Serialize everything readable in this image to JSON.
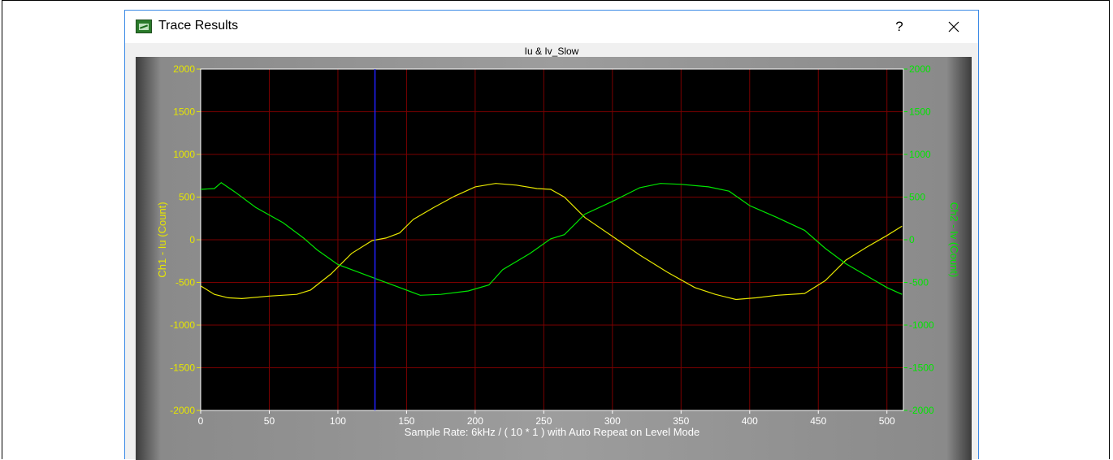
{
  "window": {
    "title": "Trace Results",
    "help_label": "?",
    "icons": {
      "app": "trace-results-app-icon",
      "close": "close-icon"
    }
  },
  "chart_data": {
    "type": "line",
    "title": "Iu & Iv_Slow",
    "xlabel": "Sample Rate: 6kHz / ( 10 * 1 ) with Auto Repeat on Level Mode",
    "ylabel_left": "Ch1 - Iu (Count)",
    "ylabel_right": "Ch2 - Iv (Count)",
    "xlim": [
      0,
      512
    ],
    "ylim": [
      -2000,
      2000
    ],
    "y2lim": [
      -2000,
      2000
    ],
    "x_ticks": [
      0,
      50,
      100,
      150,
      200,
      250,
      300,
      350,
      400,
      450,
      500
    ],
    "y_ticks": [
      2000,
      1500,
      1000,
      500,
      0,
      -500,
      -1000,
      -1500,
      -2000
    ],
    "y2_ticks": [
      2000,
      1500,
      1000,
      500,
      0,
      -500,
      -1000,
      -1500,
      -2000
    ],
    "grid": true,
    "background": "#000000",
    "grid_color": "#7a0000",
    "cursor_x": 127,
    "cursor_color": "#2020ff",
    "series": [
      {
        "axis": "left",
        "color": "#e6e600",
        "points": [
          [
            0,
            -540
          ],
          [
            10,
            -640
          ],
          [
            20,
            -680
          ],
          [
            30,
            -690
          ],
          [
            50,
            -660
          ],
          [
            70,
            -640
          ],
          [
            80,
            -590
          ],
          [
            95,
            -400
          ],
          [
            110,
            -160
          ],
          [
            125,
            -10
          ],
          [
            135,
            20
          ],
          [
            145,
            80
          ],
          [
            155,
            240
          ],
          [
            170,
            380
          ],
          [
            185,
            510
          ],
          [
            200,
            620
          ],
          [
            215,
            660
          ],
          [
            230,
            640
          ],
          [
            245,
            600
          ],
          [
            255,
            590
          ],
          [
            265,
            500
          ],
          [
            280,
            260
          ],
          [
            300,
            40
          ],
          [
            320,
            -180
          ],
          [
            340,
            -380
          ],
          [
            360,
            -560
          ],
          [
            375,
            -640
          ],
          [
            390,
            -700
          ],
          [
            405,
            -680
          ],
          [
            420,
            -650
          ],
          [
            440,
            -630
          ],
          [
            455,
            -480
          ],
          [
            470,
            -240
          ],
          [
            485,
            -90
          ],
          [
            500,
            50
          ],
          [
            511,
            160
          ]
        ]
      },
      {
        "axis": "right",
        "color": "#00e600",
        "points": [
          [
            0,
            590
          ],
          [
            10,
            600
          ],
          [
            15,
            670
          ],
          [
            25,
            560
          ],
          [
            40,
            380
          ],
          [
            60,
            200
          ],
          [
            75,
            20
          ],
          [
            85,
            -120
          ],
          [
            100,
            -290
          ],
          [
            115,
            -380
          ],
          [
            130,
            -470
          ],
          [
            145,
            -560
          ],
          [
            160,
            -650
          ],
          [
            175,
            -640
          ],
          [
            195,
            -600
          ],
          [
            210,
            -530
          ],
          [
            220,
            -350
          ],
          [
            240,
            -160
          ],
          [
            255,
            10
          ],
          [
            265,
            60
          ],
          [
            280,
            300
          ],
          [
            300,
            450
          ],
          [
            320,
            610
          ],
          [
            335,
            660
          ],
          [
            350,
            650
          ],
          [
            370,
            620
          ],
          [
            385,
            570
          ],
          [
            400,
            400
          ],
          [
            420,
            260
          ],
          [
            440,
            110
          ],
          [
            455,
            -100
          ],
          [
            470,
            -280
          ],
          [
            485,
            -420
          ],
          [
            500,
            -560
          ],
          [
            511,
            -640
          ]
        ]
      }
    ]
  }
}
